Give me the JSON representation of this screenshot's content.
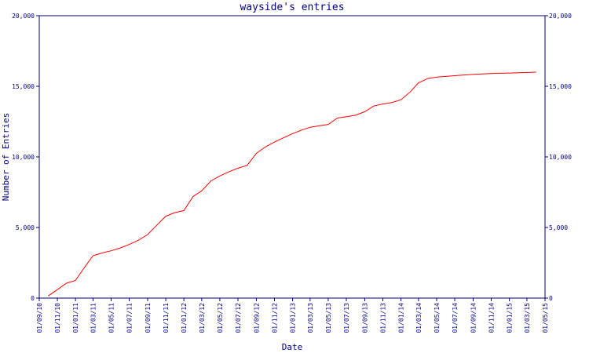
{
  "chart_data": {
    "type": "line",
    "title": "wayside's entries",
    "xlabel": "Date",
    "ylabel": "Number of Entries",
    "ylim": [
      0,
      20000
    ],
    "y_ticks": [
      0,
      5000,
      10000,
      15000,
      20000
    ],
    "y_tick_labels": [
      "0",
      "5,000",
      "10,000",
      "15,000",
      "20,000"
    ],
    "right_axis": true,
    "grid": false,
    "legend": "none",
    "x_tick_labels": [
      "01/09/10",
      "01/11/10",
      "01/01/11",
      "01/03/11",
      "01/05/11",
      "01/07/11",
      "01/09/11",
      "01/11/11",
      "01/01/12",
      "01/03/12",
      "01/05/12",
      "01/07/12",
      "01/09/12",
      "01/11/12",
      "01/01/13",
      "01/03/13",
      "01/05/13",
      "01/07/13",
      "01/09/13",
      "01/11/13",
      "01/01/14",
      "01/03/14",
      "01/05/14",
      "01/07/14",
      "01/09/14",
      "01/11/14",
      "01/01/15",
      "01/03/15",
      "01/05/15"
    ],
    "series": [
      {
        "color": "#ff0000",
        "x": [
          "2010-10-01",
          "2010-11-01",
          "2010-12-01",
          "2011-01-01",
          "2011-02-01",
          "2011-03-01",
          "2011-04-01",
          "2011-05-01",
          "2011-06-01",
          "2011-07-01",
          "2011-08-01",
          "2011-09-01",
          "2011-10-01",
          "2011-11-01",
          "2011-12-01",
          "2012-01-01",
          "2012-02-01",
          "2012-03-01",
          "2012-04-01",
          "2012-05-01",
          "2012-06-01",
          "2012-07-01",
          "2012-08-01",
          "2012-09-01",
          "2012-10-01",
          "2012-11-01",
          "2012-12-01",
          "2013-01-01",
          "2013-02-01",
          "2013-03-01",
          "2013-04-01",
          "2013-05-01",
          "2013-06-01",
          "2013-07-01",
          "2013-08-01",
          "2013-09-01",
          "2013-10-01",
          "2013-11-01",
          "2013-12-01",
          "2014-01-01",
          "2014-02-01",
          "2014-03-01",
          "2014-04-01",
          "2014-05-01",
          "2014-06-01",
          "2014-07-01",
          "2014-08-01",
          "2014-09-01",
          "2014-10-01",
          "2014-11-01",
          "2014-12-01",
          "2015-01-01",
          "2015-02-01",
          "2015-03-01",
          "2015-04-01"
        ],
        "values": [
          150,
          600,
          1050,
          1250,
          2200,
          3000,
          3200,
          3350,
          3550,
          3800,
          4100,
          4500,
          5150,
          5800,
          6050,
          6200,
          7200,
          7600,
          8300,
          8650,
          8950,
          9200,
          9400,
          10250,
          10700,
          11050,
          11350,
          11650,
          11900,
          12100,
          12200,
          12300,
          12750,
          12850,
          12950,
          13200,
          13600,
          13750,
          13850,
          14050,
          14600,
          15250,
          15550,
          15650,
          15700,
          15750,
          15800,
          15850,
          15870,
          15900,
          15920,
          15940,
          15960,
          15980,
          16000
        ]
      }
    ]
  }
}
